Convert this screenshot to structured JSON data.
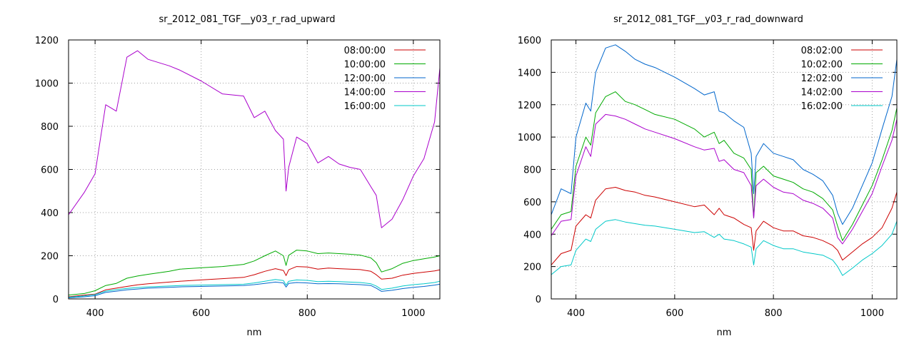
{
  "chart_data": [
    {
      "type": "line",
      "title": "sr_2012_081_TGF__y03_r_rad_upward",
      "xlabel": "nm",
      "ylabel": "",
      "xlim": [
        350,
        1050
      ],
      "ylim": [
        0,
        1200
      ],
      "xticks": [
        400,
        600,
        800,
        1000
      ],
      "yticks": [
        0,
        200,
        400,
        600,
        800,
        1000,
        1200
      ],
      "grid": true,
      "legend_position": "top-right",
      "x": [
        350,
        380,
        400,
        420,
        440,
        460,
        480,
        500,
        540,
        560,
        600,
        640,
        680,
        700,
        720,
        740,
        755,
        760,
        765,
        780,
        800,
        820,
        840,
        860,
        880,
        900,
        920,
        930,
        940,
        960,
        980,
        1000,
        1020,
        1040,
        1050
      ],
      "series": [
        {
          "name": "08:00:00",
          "color": "#cc0000",
          "values": [
            10,
            18,
            22,
            42,
            50,
            58,
            65,
            70,
            78,
            82,
            88,
            94,
            100,
            112,
            128,
            140,
            132,
            108,
            135,
            150,
            148,
            138,
            143,
            140,
            138,
            136,
            128,
            112,
            92,
            96,
            110,
            118,
            124,
            130,
            135
          ]
        },
        {
          "name": "10:00:00",
          "color": "#00aa00",
          "values": [
            18,
            25,
            38,
            62,
            72,
            96,
            106,
            114,
            128,
            138,
            144,
            150,
            160,
            176,
            200,
            222,
            200,
            155,
            202,
            226,
            222,
            210,
            213,
            210,
            207,
            203,
            190,
            168,
            125,
            140,
            165,
            178,
            186,
            194,
            200
          ]
        },
        {
          "name": "12:00:00",
          "color": "#0066cc",
          "values": [
            5,
            10,
            15,
            30,
            36,
            42,
            46,
            50,
            54,
            56,
            58,
            60,
            62,
            66,
            72,
            78,
            74,
            55,
            72,
            76,
            74,
            70,
            71,
            70,
            68,
            66,
            62,
            50,
            35,
            40,
            48,
            54,
            58,
            64,
            68
          ]
        },
        {
          "name": "14:00:00",
          "color": "#aa00cc",
          "values": [
            390,
            495,
            580,
            900,
            870,
            1120,
            1150,
            1110,
            1080,
            1060,
            1010,
            950,
            940,
            840,
            870,
            780,
            740,
            500,
            610,
            750,
            720,
            630,
            660,
            625,
            610,
            600,
            520,
            480,
            330,
            370,
            460,
            570,
            650,
            820,
            1070
          ]
        },
        {
          "name": "16:00:00",
          "color": "#00c8c8",
          "values": [
            8,
            14,
            20,
            36,
            43,
            49,
            53,
            56,
            60,
            62,
            64,
            66,
            68,
            74,
            82,
            90,
            85,
            64,
            82,
            88,
            86,
            80,
            82,
            80,
            78,
            76,
            70,
            60,
            44,
            50,
            60,
            66,
            70,
            76,
            82
          ]
        }
      ]
    },
    {
      "type": "line",
      "title": "sr_2012_081_TGF__y03_r_rad_downward",
      "xlabel": "nm",
      "ylabel": "",
      "xlim": [
        350,
        1050
      ],
      "ylim": [
        0,
        1600
      ],
      "xticks": [
        400,
        600,
        800,
        1000
      ],
      "yticks": [
        0,
        200,
        400,
        600,
        800,
        1000,
        1200,
        1400,
        1600
      ],
      "grid": true,
      "legend_position": "top-right",
      "x": [
        350,
        370,
        390,
        400,
        420,
        430,
        440,
        460,
        480,
        500,
        520,
        540,
        560,
        600,
        640,
        660,
        680,
        690,
        700,
        720,
        740,
        755,
        760,
        765,
        780,
        800,
        820,
        840,
        860,
        880,
        900,
        920,
        930,
        940,
        960,
        980,
        1000,
        1020,
        1040,
        1050
      ],
      "series": [
        {
          "name": "08:02:00",
          "color": "#cc0000",
          "values": [
            210,
            280,
            300,
            450,
            520,
            500,
            610,
            680,
            690,
            670,
            660,
            640,
            630,
            600,
            570,
            580,
            520,
            560,
            520,
            500,
            460,
            440,
            300,
            420,
            480,
            440,
            420,
            420,
            390,
            380,
            360,
            330,
            300,
            240,
            290,
            340,
            380,
            440,
            560,
            660
          ]
        },
        {
          "name": "10:02:00",
          "color": "#00aa00",
          "values": [
            430,
            520,
            540,
            820,
            1000,
            950,
            1150,
            1250,
            1280,
            1220,
            1200,
            1170,
            1140,
            1110,
            1050,
            1000,
            1030,
            960,
            980,
            900,
            870,
            800,
            500,
            780,
            820,
            760,
            740,
            720,
            680,
            660,
            620,
            550,
            450,
            360,
            460,
            580,
            700,
            860,
            1040,
            1180
          ]
        },
        {
          "name": "12:02:00",
          "color": "#0066cc",
          "values": [
            520,
            680,
            650,
            1000,
            1210,
            1160,
            1400,
            1550,
            1570,
            1530,
            1480,
            1450,
            1430,
            1370,
            1300,
            1260,
            1280,
            1160,
            1150,
            1100,
            1060,
            900,
            650,
            880,
            960,
            900,
            880,
            860,
            800,
            770,
            730,
            640,
            530,
            460,
            560,
            700,
            840,
            1050,
            1250,
            1480
          ]
        },
        {
          "name": "14:02:00",
          "color": "#aa00cc",
          "values": [
            390,
            480,
            490,
            760,
            940,
            880,
            1080,
            1140,
            1130,
            1110,
            1080,
            1050,
            1030,
            990,
            940,
            920,
            930,
            850,
            860,
            800,
            780,
            700,
            500,
            700,
            740,
            690,
            660,
            650,
            610,
            590,
            560,
            500,
            380,
            340,
            430,
            540,
            650,
            820,
            980,
            1110
          ]
        },
        {
          "name": "16:02:00",
          "color": "#00c8c8",
          "values": [
            150,
            200,
            210,
            300,
            370,
            355,
            430,
            480,
            490,
            475,
            465,
            455,
            450,
            430,
            410,
            415,
            380,
            400,
            370,
            360,
            340,
            320,
            210,
            310,
            360,
            330,
            310,
            310,
            290,
            280,
            270,
            240,
            200,
            145,
            190,
            240,
            280,
            330,
            400,
            480
          ]
        }
      ]
    }
  ]
}
